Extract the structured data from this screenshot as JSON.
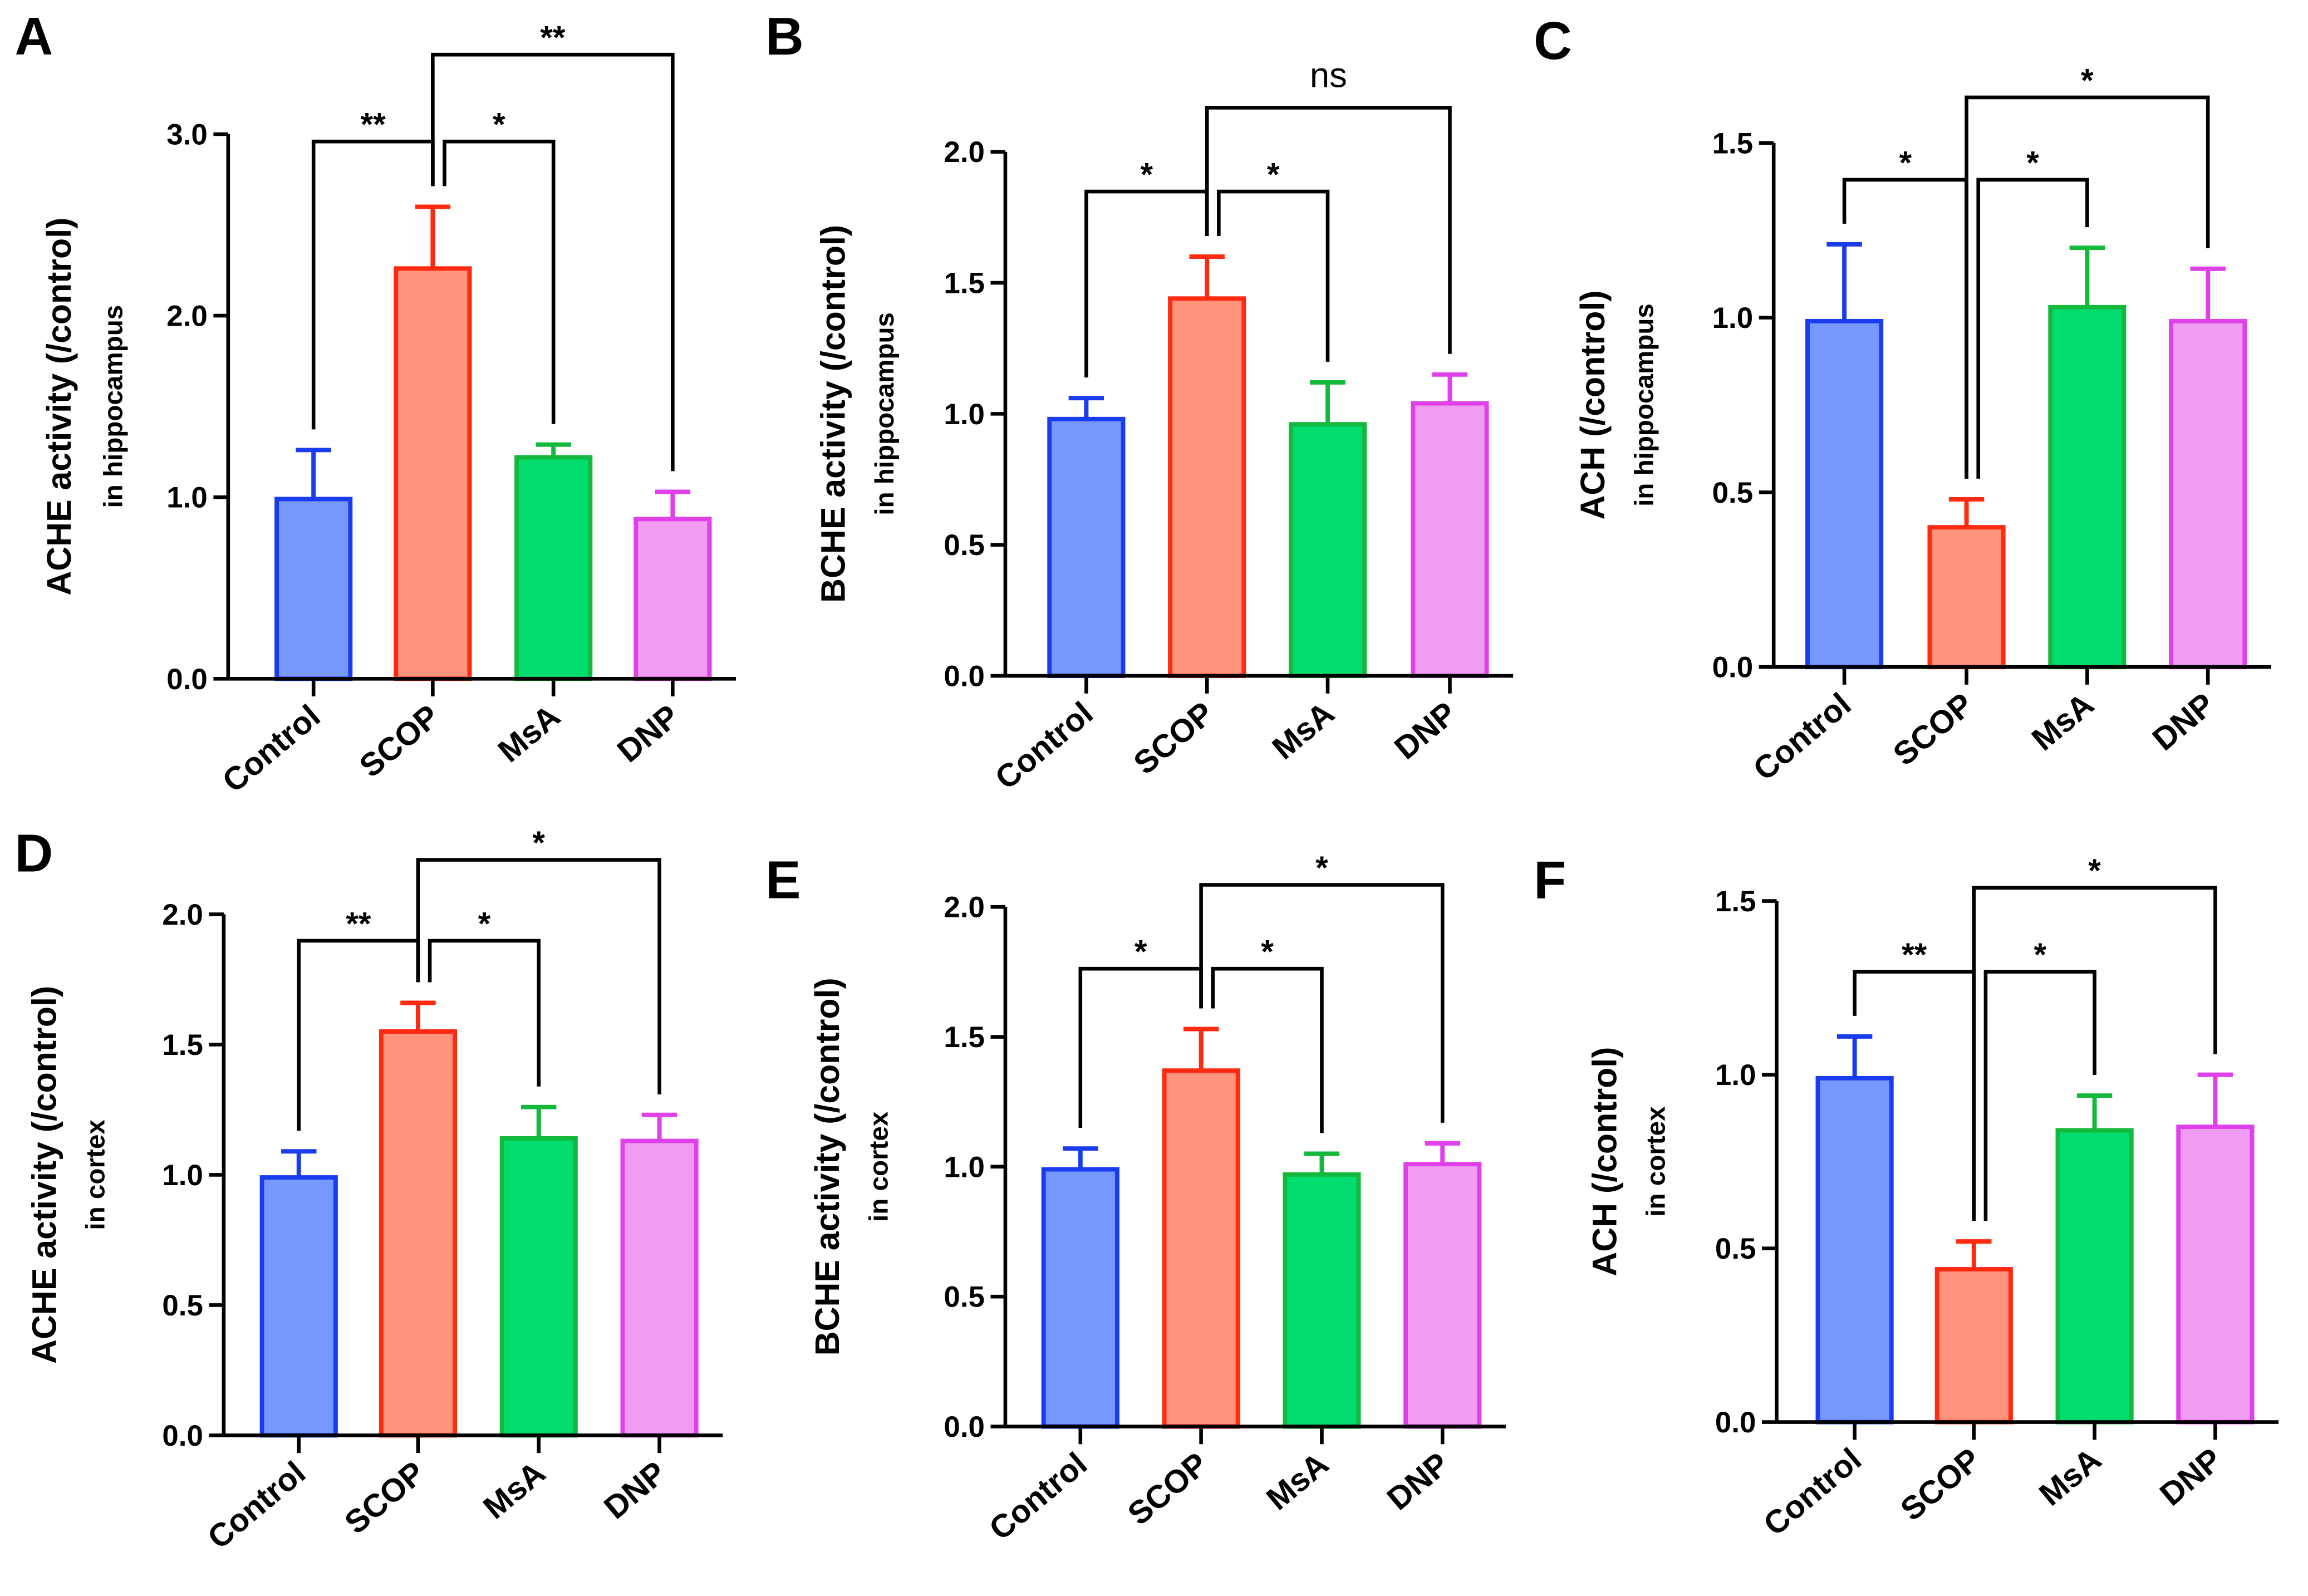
{
  "colors": {
    "Control": {
      "fill": "#7799ff",
      "stroke": "#1a3cf0"
    },
    "SCOP": {
      "fill": "#ff937c",
      "stroke": "#ff2a10"
    },
    "MsA": {
      "fill": "#00dd6e",
      "stroke": "#14b83c"
    },
    "DNP": {
      "fill": "#f09cf2",
      "stroke": "#e040ea"
    }
  },
  "chart_data": [
    {
      "panel": "A",
      "type": "bar",
      "ylabel": "ACHE activity (/control)",
      "ylabel2": "in hippocampus",
      "categories": [
        "Control",
        "SCOP",
        "MsA",
        "DNP"
      ],
      "values": [
        0.99,
        2.26,
        1.22,
        0.88
      ],
      "errors": [
        0.27,
        0.34,
        0.07,
        0.15
      ],
      "ylim": [
        0,
        3.0
      ],
      "ticks": [
        "0.0",
        "1.0",
        "2.0",
        "3.0"
      ],
      "tickvals": [
        0,
        1,
        2,
        3
      ],
      "comparisons": [
        {
          "pair": [
            "Control",
            "SCOP"
          ],
          "label": "**"
        },
        {
          "pair": [
            "SCOP",
            "MsA"
          ],
          "label": "*"
        },
        {
          "pair": [
            "SCOP",
            "DNP"
          ],
          "label": "**"
        }
      ]
    },
    {
      "panel": "B",
      "type": "bar",
      "ylabel": "BCHE activity (/control)",
      "ylabel2": "in hippocampus",
      "categories": [
        "Control",
        "SCOP",
        "MsA",
        "DNP"
      ],
      "values": [
        0.98,
        1.44,
        0.96,
        1.04
      ],
      "errors": [
        0.08,
        0.16,
        0.16,
        0.11
      ],
      "ylim": [
        0,
        2.0
      ],
      "ticks": [
        "0.0",
        "0.5",
        "1.0",
        "1.5",
        "2.0"
      ],
      "tickvals": [
        0,
        0.5,
        1,
        1.5,
        2
      ],
      "comparisons": [
        {
          "pair": [
            "Control",
            "SCOP"
          ],
          "label": "*"
        },
        {
          "pair": [
            "SCOP",
            "MsA"
          ],
          "label": "*"
        },
        {
          "pair": [
            "SCOP",
            "DNP"
          ],
          "label": "ns"
        }
      ]
    },
    {
      "panel": "C",
      "type": "bar",
      "ylabel": "ACH (/control)",
      "ylabel2": "in hippocampus",
      "categories": [
        "Control",
        "SCOP",
        "MsA",
        "DNP"
      ],
      "values": [
        0.99,
        0.4,
        1.03,
        0.99
      ],
      "errors": [
        0.22,
        0.08,
        0.17,
        0.15
      ],
      "ylim": [
        0,
        1.5
      ],
      "ticks": [
        "0.0",
        "0.5",
        "1.0",
        "1.5"
      ],
      "tickvals": [
        0,
        0.5,
        1,
        1.5
      ],
      "comparisons": [
        {
          "pair": [
            "Control",
            "SCOP"
          ],
          "label": "*"
        },
        {
          "pair": [
            "SCOP",
            "MsA"
          ],
          "label": "*"
        },
        {
          "pair": [
            "SCOP",
            "DNP"
          ],
          "label": "*"
        }
      ]
    },
    {
      "panel": "D",
      "type": "bar",
      "ylabel": "ACHE activity (/control)",
      "ylabel2": "in cortex",
      "categories": [
        "Control",
        "SCOP",
        "MsA",
        "DNP"
      ],
      "values": [
        0.99,
        1.55,
        1.14,
        1.13
      ],
      "errors": [
        0.1,
        0.11,
        0.12,
        0.1
      ],
      "ylim": [
        0,
        2.0
      ],
      "ticks": [
        "0.0",
        "0.5",
        "1.0",
        "1.5",
        "2.0"
      ],
      "tickvals": [
        0,
        0.5,
        1,
        1.5,
        2
      ],
      "comparisons": [
        {
          "pair": [
            "Control",
            "SCOP"
          ],
          "label": "**"
        },
        {
          "pair": [
            "SCOP",
            "MsA"
          ],
          "label": "*"
        },
        {
          "pair": [
            "SCOP",
            "DNP"
          ],
          "label": "*"
        }
      ]
    },
    {
      "panel": "E",
      "type": "bar",
      "ylabel": "BCHE activity (/control)",
      "ylabel2": "in cortex",
      "categories": [
        "Control",
        "SCOP",
        "MsA",
        "DNP"
      ],
      "values": [
        0.99,
        1.37,
        0.97,
        1.01
      ],
      "errors": [
        0.08,
        0.16,
        0.08,
        0.08
      ],
      "ylim": [
        0,
        2.0
      ],
      "ticks": [
        "0.0",
        "0.5",
        "1.0",
        "1.5",
        "2.0"
      ],
      "tickvals": [
        0,
        0.5,
        1,
        1.5,
        2
      ],
      "comparisons": [
        {
          "pair": [
            "Control",
            "SCOP"
          ],
          "label": "*"
        },
        {
          "pair": [
            "SCOP",
            "MsA"
          ],
          "label": "*"
        },
        {
          "pair": [
            "SCOP",
            "DNP"
          ],
          "label": "*"
        }
      ]
    },
    {
      "panel": "F",
      "type": "bar",
      "ylabel": "ACH (/control)",
      "ylabel2": "in cortex",
      "categories": [
        "Control",
        "SCOP",
        "MsA",
        "DNP"
      ],
      "values": [
        0.99,
        0.44,
        0.84,
        0.85
      ],
      "errors": [
        0.12,
        0.08,
        0.1,
        0.15
      ],
      "ylim": [
        0,
        1.5
      ],
      "ticks": [
        "0.0",
        "0.5",
        "1.0",
        "1.5"
      ],
      "tickvals": [
        0,
        0.5,
        1,
        1.5
      ],
      "comparisons": [
        {
          "pair": [
            "Control",
            "SCOP"
          ],
          "label": "**"
        },
        {
          "pair": [
            "SCOP",
            "MsA"
          ],
          "label": "*"
        },
        {
          "pair": [
            "SCOP",
            "DNP"
          ],
          "label": "*"
        }
      ]
    }
  ]
}
